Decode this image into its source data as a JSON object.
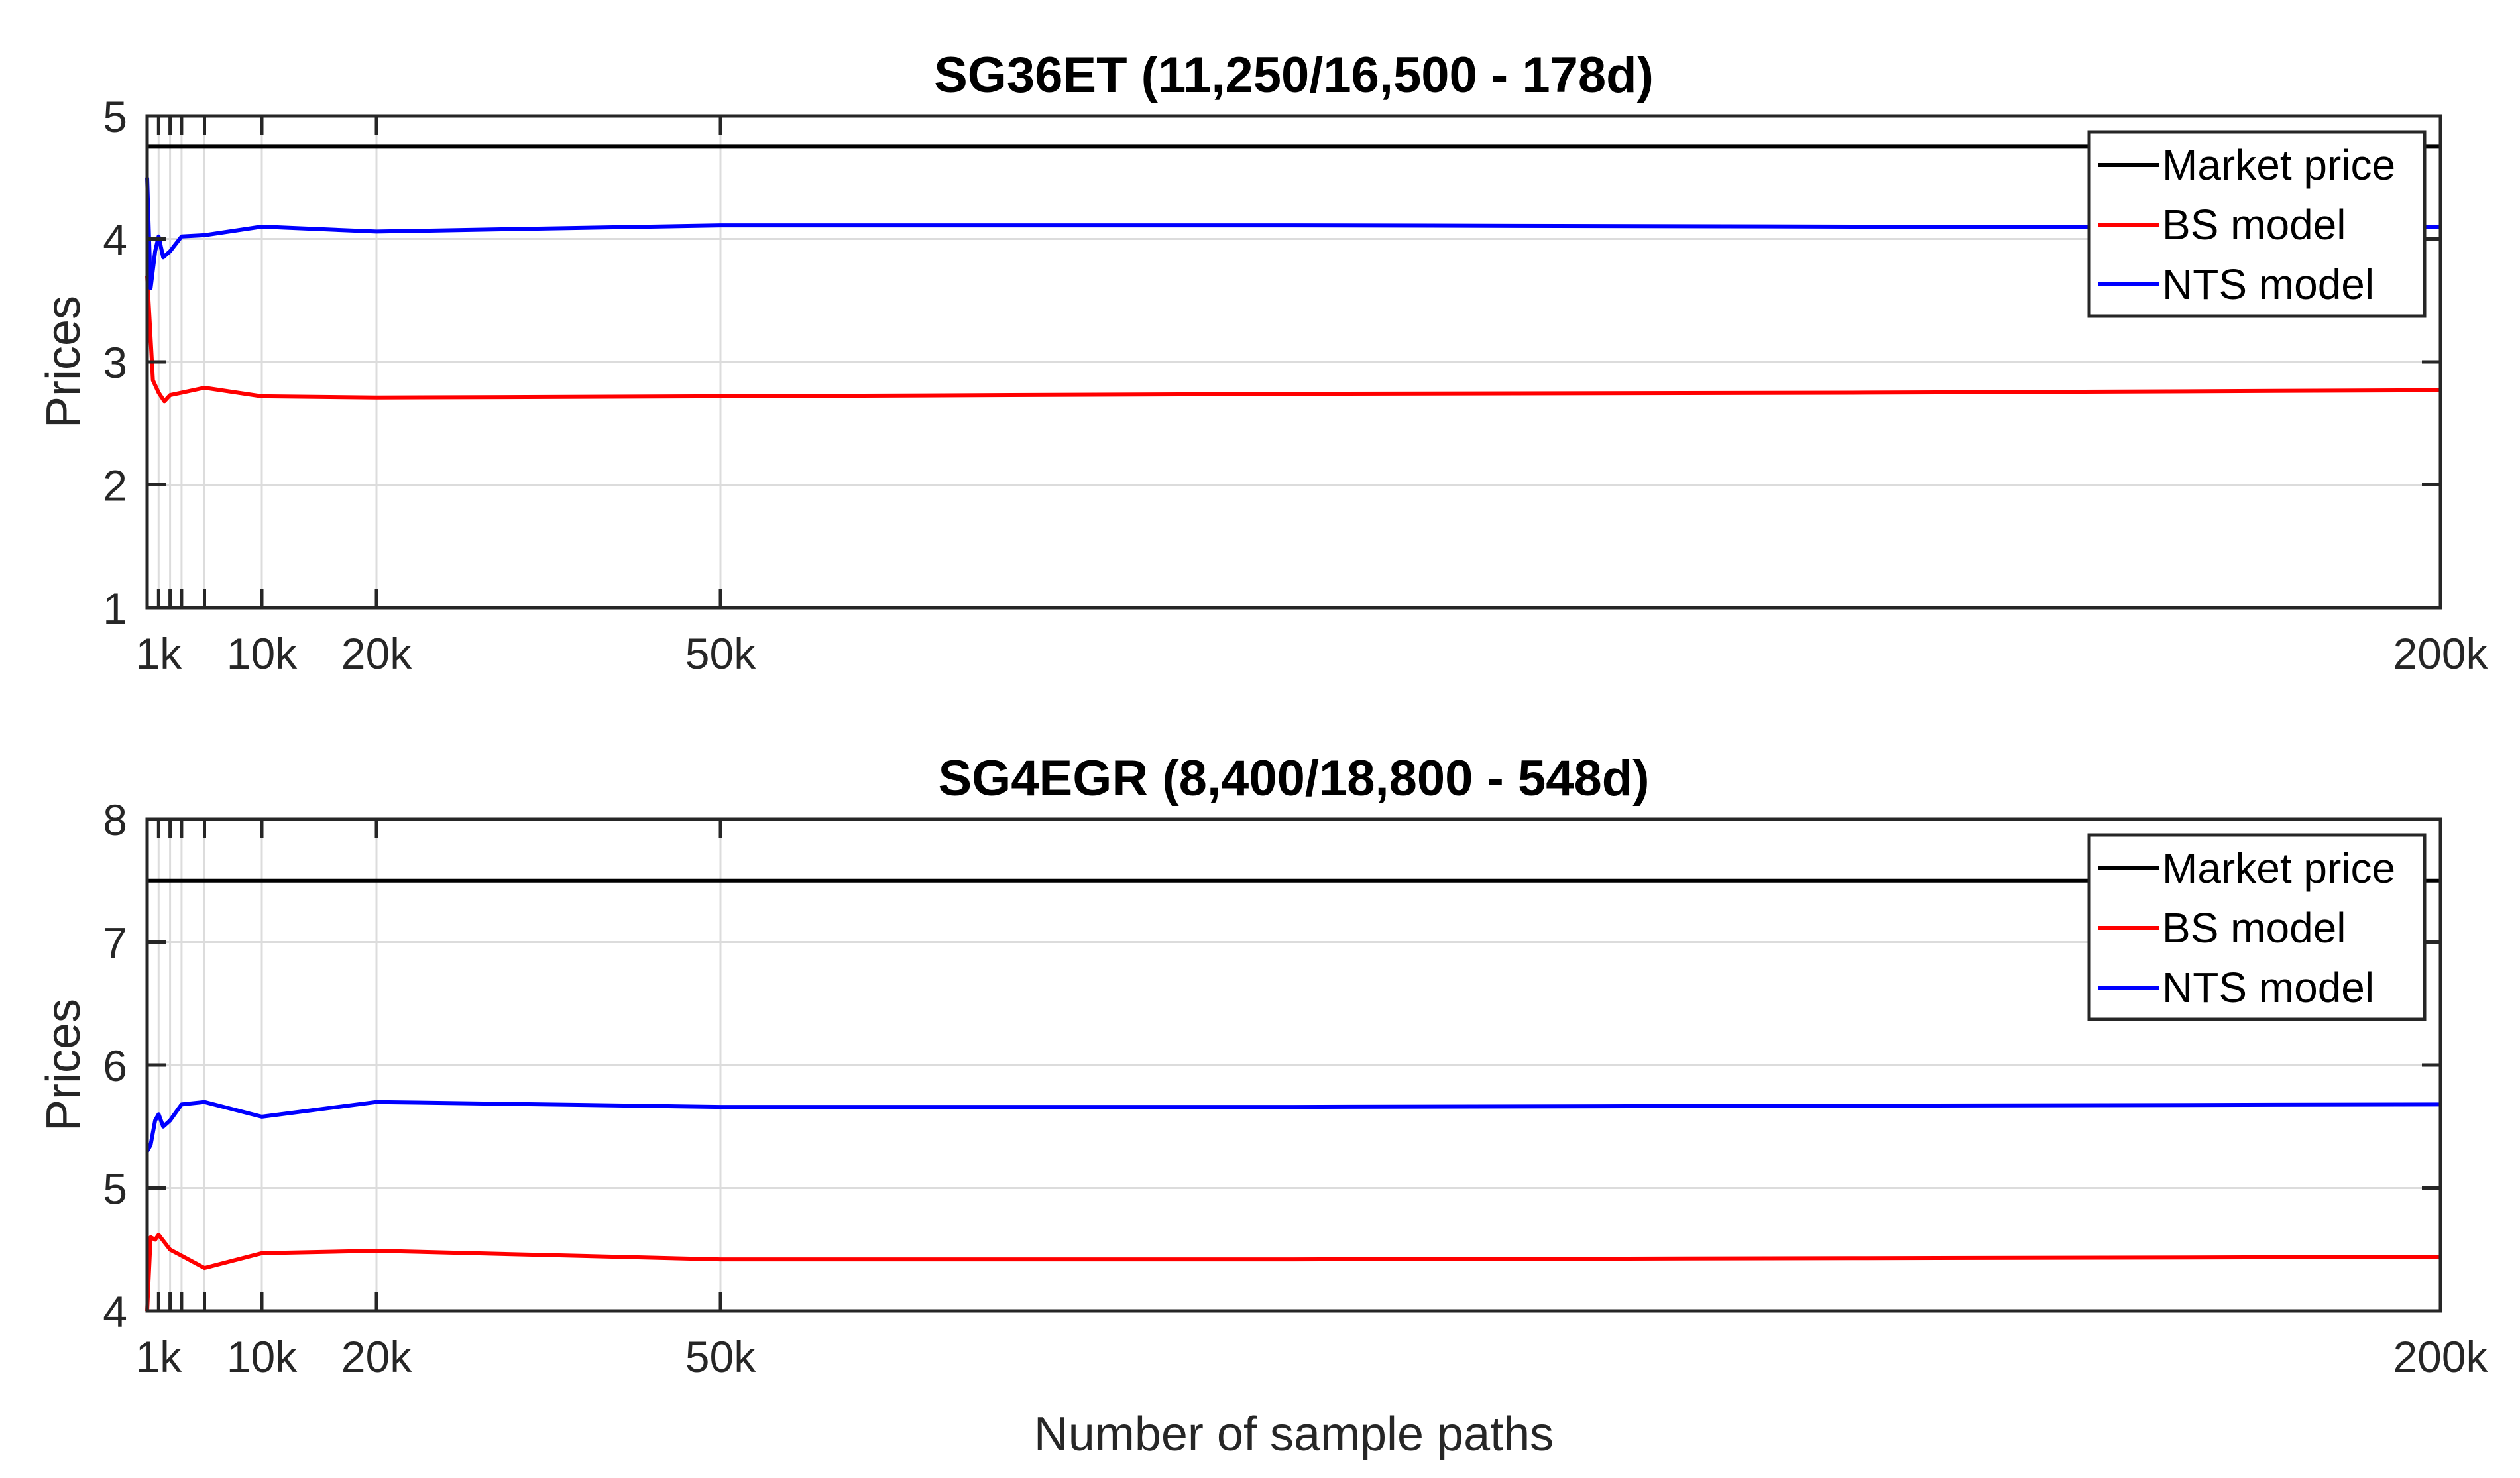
{
  "chart_data": [
    {
      "type": "line",
      "title": "SG36ET (11,250/16,500 - 178d)",
      "xlabel": "",
      "ylabel": "Prices",
      "xlim": [
        0,
        200000
      ],
      "ylim": [
        1,
        5
      ],
      "xticks": [
        1000,
        2000,
        3000,
        5000,
        10000,
        20000,
        50000,
        200000
      ],
      "xtick_labels": [
        "1k",
        "",
        "",
        "",
        "10k",
        "20k",
        "50k",
        "200k"
      ],
      "yticks": [
        1,
        2,
        3,
        4,
        5
      ],
      "ytick_labels": [
        "1",
        "2",
        "3",
        "4",
        "5"
      ],
      "grid": true,
      "legend": "top-right",
      "series": [
        {
          "name": "Market price",
          "color": "#000000",
          "x": [
            0,
            200000
          ],
          "y": [
            4.75,
            4.75
          ]
        },
        {
          "name": "BS model",
          "color": "#ff0000",
          "x": [
            0,
            500,
            1000,
            1500,
            2000,
            3000,
            5000,
            10000,
            20000,
            50000,
            100000,
            150000,
            200000
          ],
          "y": [
            3.7,
            2.85,
            2.75,
            2.68,
            2.73,
            2.75,
            2.79,
            2.72,
            2.71,
            2.72,
            2.74,
            2.75,
            2.77
          ]
        },
        {
          "name": "NTS model",
          "color": "#0000ff",
          "x": [
            0,
            300,
            700,
            1000,
            1400,
            2000,
            3000,
            5000,
            10000,
            20000,
            50000,
            100000,
            150000,
            200000
          ],
          "y": [
            4.5,
            3.6,
            3.9,
            4.02,
            3.85,
            3.9,
            4.02,
            4.03,
            4.1,
            4.06,
            4.11,
            4.11,
            4.1,
            4.1
          ]
        }
      ]
    },
    {
      "type": "line",
      "title": "SG4EGR (8,400/18,800 - 548d)",
      "xlabel": "Number of sample paths",
      "ylabel": "Prices",
      "xlim": [
        0,
        200000
      ],
      "ylim": [
        4,
        8
      ],
      "xticks": [
        1000,
        2000,
        3000,
        5000,
        10000,
        20000,
        50000,
        200000
      ],
      "xtick_labels": [
        "1k",
        "",
        "",
        "",
        "10k",
        "20k",
        "50k",
        "200k"
      ],
      "yticks": [
        4,
        5,
        6,
        7,
        8
      ],
      "ytick_labels": [
        "4",
        "5",
        "6",
        "7",
        "8"
      ],
      "grid": true,
      "legend": "top-right",
      "series": [
        {
          "name": "Market price",
          "color": "#000000",
          "x": [
            0,
            200000
          ],
          "y": [
            7.5,
            7.5
          ]
        },
        {
          "name": "BS model",
          "color": "#ff0000",
          "x": [
            0,
            300,
            700,
            1000,
            1500,
            2000,
            3000,
            5000,
            10000,
            20000,
            50000,
            100000,
            150000,
            200000
          ],
          "y": [
            4.0,
            4.6,
            4.58,
            4.62,
            4.56,
            4.5,
            4.45,
            4.35,
            4.47,
            4.49,
            4.42,
            4.42,
            4.43,
            4.44
          ]
        },
        {
          "name": "NTS model",
          "color": "#0000ff",
          "x": [
            0,
            300,
            700,
            1000,
            1400,
            2000,
            3000,
            5000,
            10000,
            20000,
            50000,
            100000,
            150000,
            200000
          ],
          "y": [
            5.3,
            5.35,
            5.55,
            5.6,
            5.5,
            5.55,
            5.68,
            5.7,
            5.58,
            5.7,
            5.66,
            5.66,
            5.67,
            5.68
          ]
        }
      ]
    }
  ]
}
